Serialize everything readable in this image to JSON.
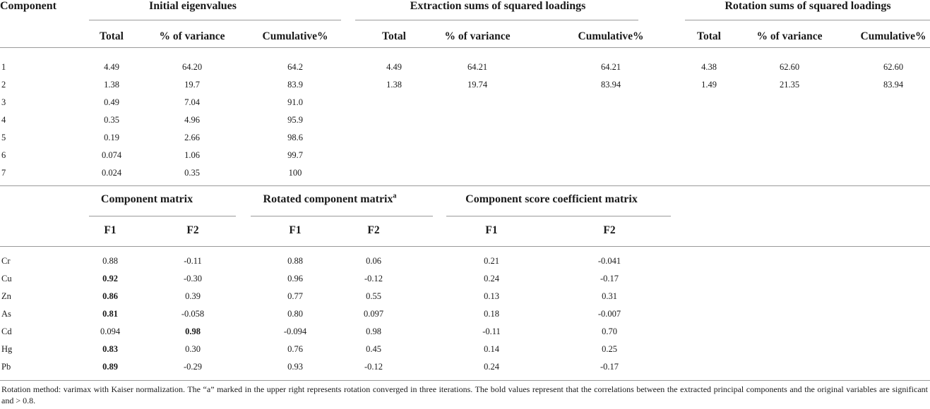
{
  "top": {
    "component_header": "Component",
    "groups": [
      {
        "title": "Initial eigenvalues",
        "cols": [
          "Total",
          "% of variance",
          "Cumulative%"
        ]
      },
      {
        "title": "Extraction sums of squared loadings",
        "cols": [
          "Total",
          "% of variance",
          "Cumulative%"
        ]
      },
      {
        "title": "Rotation sums of squared loadings",
        "cols": [
          "Total",
          "% of variance",
          "Cumulative%"
        ]
      }
    ],
    "rows": [
      {
        "c": "1",
        "v": [
          "4.49",
          "64.20",
          "64.2",
          "4.49",
          "64.21",
          "64.21",
          "4.38",
          "62.60",
          "62.60"
        ]
      },
      {
        "c": "2",
        "v": [
          "1.38",
          "19.7",
          "83.9",
          "1.38",
          "19.74",
          "83.94",
          "1.49",
          "21.35",
          "83.94"
        ]
      },
      {
        "c": "3",
        "v": [
          "0.49",
          "7.04",
          "91.0",
          "",
          "",
          "",
          "",
          "",
          ""
        ]
      },
      {
        "c": "4",
        "v": [
          "0.35",
          "4.96",
          "95.9",
          "",
          "",
          "",
          "",
          "",
          ""
        ]
      },
      {
        "c": "5",
        "v": [
          "0.19",
          "2.66",
          "98.6",
          "",
          "",
          "",
          "",
          "",
          ""
        ]
      },
      {
        "c": "6",
        "v": [
          "0.074",
          "1.06",
          "99.7",
          "",
          "",
          "",
          "",
          "",
          ""
        ]
      },
      {
        "c": "7",
        "v": [
          "0.024",
          "0.35",
          "100",
          "",
          "",
          "",
          "",
          "",
          ""
        ]
      }
    ]
  },
  "bottom": {
    "groups": [
      {
        "title": "Component matrix",
        "sup": "",
        "cols": [
          "F1",
          "F2"
        ]
      },
      {
        "title": "Rotated component matrix",
        "sup": "a",
        "cols": [
          "F1",
          "F2"
        ]
      },
      {
        "title": "Component score coefficient matrix",
        "sup": "",
        "cols": [
          "F1",
          "F2"
        ]
      }
    ],
    "rows": [
      {
        "el": "Cr",
        "v": [
          "0.88",
          "-0.11",
          "0.88",
          "0.06",
          "0.21",
          "-0.041"
        ],
        "bold": []
      },
      {
        "el": "Cu",
        "v": [
          "0.92",
          "-0.30",
          "0.96",
          "-0.12",
          "0.24",
          "-0.17"
        ],
        "bold": [
          0
        ]
      },
      {
        "el": "Zn",
        "v": [
          "0.86",
          "0.39",
          "0.77",
          "0.55",
          "0.13",
          "0.31"
        ],
        "bold": [
          0
        ]
      },
      {
        "el": "As",
        "v": [
          "0.81",
          "-0.058",
          "0.80",
          "0.097",
          "0.18",
          "-0.007"
        ],
        "bold": [
          0
        ]
      },
      {
        "el": "Cd",
        "v": [
          "0.094",
          "0.98",
          "-0.094",
          "0.98",
          "-0.11",
          "0.70"
        ],
        "bold": [
          1
        ]
      },
      {
        "el": "Hg",
        "v": [
          "0.83",
          "0.30",
          "0.76",
          "0.45",
          "0.14",
          "0.25"
        ],
        "bold": [
          0
        ]
      },
      {
        "el": "Pb",
        "v": [
          "0.89",
          "-0.29",
          "0.93",
          "-0.12",
          "0.24",
          "-0.17"
        ],
        "bold": [
          0
        ]
      }
    ]
  },
  "footnote": "Rotation method: varimax with Kaiser normalization. The “a” marked in the upper right represents rotation converged in three iterations. The bold values represent that the correlations between the extracted principal components and the original variables are significant and > 0.8."
}
